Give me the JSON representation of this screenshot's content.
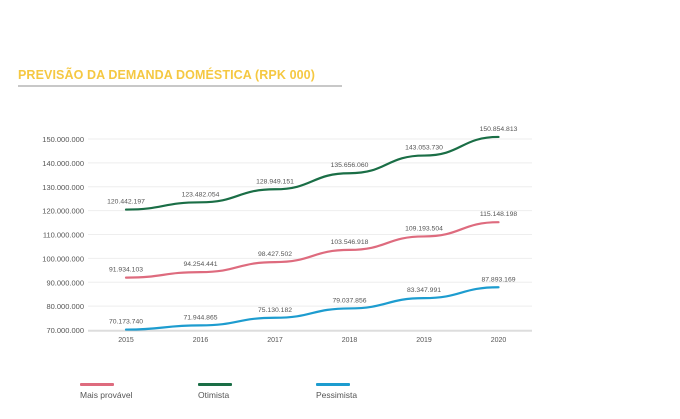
{
  "page": {
    "title": "PREVISÃO DA DEMANDA DOMÉSTICA (RPK 000)"
  },
  "colors": {
    "title": "#f5c842",
    "grid": "#eeeeee",
    "axis": "#cccccc",
    "text": "#555555"
  },
  "chart_data": {
    "type": "line",
    "title": "PREVISÃO DA DEMANDA DOMÉSTICA (RPK 000)",
    "categories": [
      "2015",
      "2016",
      "2017",
      "2018",
      "2019",
      "2020"
    ],
    "ylim": [
      70000000,
      150000000
    ],
    "yticks": [
      70000000,
      80000000,
      90000000,
      100000000,
      110000000,
      120000000,
      130000000,
      140000000,
      150000000
    ],
    "ytick_labels": [
      "70.000.000",
      "80.000.000",
      "90.000.000",
      "100.000.000",
      "110.000.000",
      "120.000.000",
      "130.000.000",
      "140.000.000",
      "150.000.000"
    ],
    "grid": true,
    "legend_position": "bottom",
    "series": [
      {
        "name": "Mais provável",
        "color": "#de6b7e",
        "values": [
          91934103,
          94254441,
          98427502,
          103546918,
          109193504,
          115148198
        ],
        "labels": [
          "91.934.103",
          "94.254.441",
          "98.427.502",
          "103.546.918",
          "109.193.504",
          "115.148.198"
        ]
      },
      {
        "name": "Otimista",
        "color": "#1a6e46",
        "values": [
          120442197,
          123482054,
          128949151,
          135656060,
          143053730,
          150854813
        ],
        "labels": [
          "120.442.197",
          "123.482.054",
          "128.949.151",
          "135.656.060",
          "143.053.730",
          "150.854.813"
        ]
      },
      {
        "name": "Pessimista",
        "color": "#1d9ccf",
        "values": [
          70173740,
          71944865,
          75130182,
          79037856,
          83347991,
          87893169
        ],
        "labels": [
          "70.173.740",
          "71.944.865",
          "75.130.182",
          "79.037.856",
          "83.347.991",
          "87.893.169"
        ]
      }
    ]
  }
}
